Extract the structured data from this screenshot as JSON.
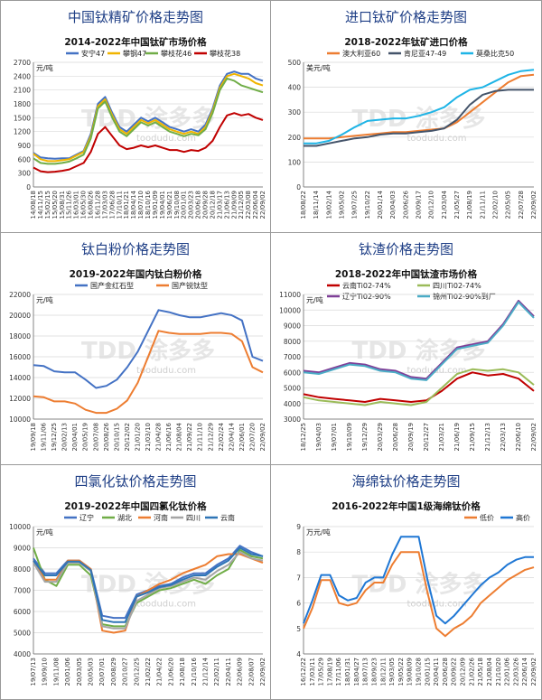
{
  "panels": [
    {
      "title": "中国钛精矿价格走势图",
      "chart_data": {
        "type": "line",
        "title": "2014-2022年中国钛矿市场价格",
        "ylabel": "元/吨",
        "ylim": [
          0,
          2700
        ],
        "yticks": [
          0,
          300,
          600,
          900,
          1200,
          1500,
          1800,
          2100,
          2400,
          2700
        ],
        "xticks": [
          "14/08/18",
          "14/11/15",
          "15/02/15",
          "15/05/20",
          "15/08/31",
          "15/11/26",
          "16/03/01",
          "16/05/30",
          "16/08/26",
          "16/11/28",
          "17/03/03",
          "17/06/28",
          "17/10/11",
          "18/01/21",
          "18/04/14",
          "18/07/10",
          "18/10/16",
          "19/01/09",
          "19/04/01",
          "19/06/21",
          "19/10/08",
          "20/01/01",
          "20/03/23",
          "20/06/18",
          "20/09/28",
          "20/12/18",
          "21/03/17",
          "21/06/13",
          "21/09/09",
          "21/12/05",
          "22/03/08",
          "22/06/04",
          "22/09/02"
        ],
        "grid": "horizontal",
        "legend": "top",
        "watermark": "toodudu.com",
        "series": [
          {
            "name": "安宁47",
            "color": "#4472c4",
            "values": [
              740,
              640,
              620,
              610,
              620,
              620,
              700,
              780,
              1150,
              1800,
              1950,
              1600,
              1300,
              1200,
              1350,
              1500,
              1420,
              1500,
              1400,
              1300,
              1250,
              1200,
              1250,
              1200,
              1350,
              1700,
              2200,
              2450,
              2500,
              2450,
              2450,
              2350,
              2300
            ]
          },
          {
            "name": "攀钢47",
            "color": "#f0b400",
            "values": [
              720,
              600,
              560,
              560,
              580,
              600,
              680,
              760,
              1100,
              1750,
              1900,
              1550,
              1250,
              1150,
              1300,
              1450,
              1380,
              1450,
              1350,
              1250,
              1200,
              1150,
              1200,
              1150,
              1300,
              1650,
              2150,
              2400,
              2450,
              2400,
              2350,
              2250,
              2200
            ]
          },
          {
            "name": "攀枝花46",
            "color": "#70ad47",
            "values": [
              620,
              520,
              500,
              500,
              520,
              550,
              620,
              700,
              1050,
              1700,
              1850,
              1500,
              1200,
              1100,
              1250,
              1400,
              1330,
              1400,
              1300,
              1200,
              1150,
              1100,
              1150,
              1120,
              1250,
              1600,
              2100,
              2350,
              2300,
              2200,
              2150,
              2100,
              2050
            ]
          },
          {
            "name": "攀枝花38",
            "color": "#c00000",
            "values": [
              420,
              340,
              320,
              330,
              350,
              380,
              450,
              520,
              760,
              1150,
              1300,
              1100,
              900,
              820,
              850,
              900,
              860,
              900,
              850,
              800,
              800,
              760,
              800,
              780,
              850,
              1000,
              1300,
              1550,
              1600,
              1550,
              1580,
              1500,
              1450
            ]
          }
        ]
      }
    },
    {
      "title": "进口钛矿价格走势图",
      "chart_data": {
        "type": "line",
        "title": "2018-2022年钛矿进口价格",
        "ylabel": "美元/吨",
        "ylim": [
          0,
          500
        ],
        "yticks": [
          0,
          100,
          200,
          300,
          400,
          500
        ],
        "xticks": [
          "18/08/22",
          "18/11/14",
          "19/02/14",
          "19/05/02",
          "19/07/25",
          "19/10/22",
          "20/01/14",
          "20/04/03",
          "20/06/26",
          "20/09/17",
          "20/12/10",
          "21/03/04",
          "21/05/27",
          "21/08/19",
          "21/11/11",
          "22/02/10",
          "22/05/05",
          "22/07/28",
          "22/09/02"
        ],
        "grid": "horizontal",
        "legend": "top",
        "watermark": "toodudu.com",
        "series": [
          {
            "name": "澳大利亚60",
            "color": "#ed7d31",
            "values": [
              195,
              195,
              195,
              200,
              205,
              210,
              215,
              220,
              220,
              225,
              230,
              235,
              260,
              300,
              340,
              380,
              420,
              445,
              450
            ]
          },
          {
            "name": "肯尼亚47-49",
            "color": "#44546a",
            "values": [
              165,
              165,
              175,
              185,
              195,
              200,
              210,
              215,
              215,
              220,
              225,
              235,
              270,
              330,
              370,
              385,
              390,
              390,
              390
            ]
          },
          {
            "name": "莫桑比克50",
            "color": "#1eb4e6",
            "values": [
              175,
              175,
              185,
              210,
              240,
              265,
              270,
              275,
              275,
              285,
              300,
              320,
              360,
              390,
              400,
              425,
              450,
              465,
              470
            ]
          }
        ]
      }
    },
    {
      "title": "钛白粉价格走势图",
      "chart_data": {
        "type": "line",
        "title": "2019-2022年国内钛白粉价格",
        "ylabel": "元/吨",
        "ylim": [
          10000,
          22000
        ],
        "yticks": [
          10000,
          12000,
          14000,
          16000,
          18000,
          20000,
          22000
        ],
        "xticks": [
          "19/09/18",
          "19/11/06",
          "19/12/25",
          "20/02/13",
          "20/04/01",
          "20/05/19",
          "20/07/08",
          "20/08/26",
          "20/10/15",
          "20/12/02",
          "21/01/20",
          "21/03/10",
          "21/04/28",
          "21/06/16",
          "21/08/04",
          "21/09/22",
          "21/11/10",
          "21/12/29",
          "22/02/24",
          "22/04/14",
          "22/06/01",
          "22/07/20",
          "22/09/02"
        ],
        "grid": "horizontal",
        "legend": "top",
        "watermark": "toodudu.com",
        "series": [
          {
            "name": "国产金红石型",
            "color": "#4472c4",
            "values": [
              15200,
              15100,
              14600,
              14500,
              14500,
              13800,
              13000,
              13200,
              13800,
              15000,
              16500,
              18500,
              20500,
              20300,
              20000,
              19800,
              19800,
              20000,
              20200,
              20000,
              19500,
              16000,
              15600
            ]
          },
          {
            "name": "国产锐钛型",
            "color": "#ed7d31",
            "values": [
              12200,
              12100,
              11700,
              11700,
              11500,
              10900,
              10600,
              10600,
              11000,
              11800,
              13500,
              16000,
              18500,
              18300,
              18200,
              18200,
              18200,
              18300,
              18300,
              18200,
              17500,
              15000,
              14500
            ]
          }
        ]
      }
    },
    {
      "title": "钛渣价格走势图",
      "chart_data": {
        "type": "line",
        "title": "2018-2022年中国钛渣市场价格",
        "ylabel": "元/吨",
        "ylim": [
          3000,
          11000
        ],
        "yticks": [
          3000,
          4000,
          5000,
          6000,
          7000,
          8000,
          9000,
          10000,
          11000
        ],
        "xticks": [
          "18/12/25",
          "19/04/03",
          "19/07/01",
          "19/10/09",
          "19/12/29",
          "20/03/29",
          "20/06/28",
          "20/09/19",
          "20/12/27",
          "21/03/21",
          "21/06/19",
          "21/09/15",
          "21/12/13",
          "22/03/13",
          "22/06/10",
          "22/09/02"
        ],
        "grid": "horizontal",
        "legend": "top",
        "watermark": "toodudu.com",
        "series": [
          {
            "name": "云南Ti02-74%",
            "color": "#c00000",
            "values": [
              4600,
              4400,
              4300,
              4200,
              4100,
              4300,
              4200,
              4100,
              4200,
              4800,
              5600,
              6000,
              5800,
              5900,
              5600,
              4800
            ]
          },
          {
            "name": "四川Ti02-74%",
            "color": "#9bbb59",
            "values": [
              4400,
              4200,
              4100,
              4000,
              3900,
              4100,
              4000,
              3900,
              4100,
              5000,
              5900,
              6200,
              6100,
              6200,
              6000,
              5200
            ]
          },
          {
            "name": "辽宁Ti02-90%",
            "color": "#7f3f98",
            "values": [
              6100,
              6000,
              6300,
              6600,
              6500,
              6200,
              6100,
              5700,
              5600,
              6600,
              7600,
              7800,
              8000,
              9100,
              10600,
              9600
            ]
          },
          {
            "name": "锦州Ti02-90%到厂",
            "color": "#4bacc6",
            "values": [
              6000,
              5900,
              6200,
              6500,
              6400,
              6100,
              6000,
              5600,
              5500,
              6500,
              7500,
              7700,
              7900,
              9000,
              10500,
              9500
            ]
          }
        ]
      }
    },
    {
      "title": "四氯化钛价格走势图",
      "chart_data": {
        "type": "line",
        "title": "2019-2022年中国四氯化钛价格",
        "ylabel": "元/吨",
        "ylim": [
          4000,
          10000
        ],
        "yticks": [
          4000,
          5000,
          6000,
          7000,
          8000,
          9000,
          10000
        ],
        "xticks": [
          "19/07/13",
          "19/09/10",
          "19/11/08",
          "20/01/06",
          "20/03/05",
          "20/05/03",
          "20/07/01",
          "20/08/29",
          "20/10/27",
          "20/12/25",
          "21/02/22",
          "21/04/22",
          "21/06/20",
          "21/08/18",
          "21/10/16",
          "21/12/14",
          "22/02/11",
          "22/04/11",
          "22/06/09",
          "22/08/07",
          "22/09/02"
        ],
        "grid": "horizontal",
        "legend": "top",
        "watermark": "toodudu.com",
        "series": [
          {
            "name": "辽宁",
            "color": "#4472c4",
            "values": [
              8500,
              7800,
              7800,
              8400,
              8400,
              8000,
              5800,
              5700,
              5700,
              6800,
              7000,
              7200,
              7300,
              7600,
              7800,
              7800,
              8200,
              8500,
              9100,
              8800,
              8600
            ]
          },
          {
            "name": "湖北",
            "color": "#70ad47",
            "values": [
              9000,
              7500,
              7200,
              8200,
              8200,
              7700,
              5400,
              5300,
              5300,
              6400,
              6700,
              7000,
              7100,
              7300,
              7500,
              7300,
              7700,
              8000,
              8900,
              8600,
              8500
            ]
          },
          {
            "name": "河南",
            "color": "#ed7d31",
            "values": [
              8400,
              7500,
              7500,
              8400,
              8400,
              8000,
              5100,
              5000,
              5100,
              6700,
              7000,
              7300,
              7500,
              7800,
              8000,
              8200,
              8600,
              8700,
              8700,
              8500,
              8300
            ]
          },
          {
            "name": "四川",
            "color": "#a5a5a5",
            "values": [
              8300,
              7400,
              7400,
              8300,
              8300,
              7900,
              5300,
              5200,
              5200,
              6500,
              6800,
              7100,
              7200,
              7400,
              7600,
              7500,
              7900,
              8200,
              8800,
              8500,
              8400
            ]
          },
          {
            "name": "云南",
            "color": "#2e75b6",
            "values": [
              8400,
              7700,
              7700,
              8350,
              8350,
              7950,
              5600,
              5500,
              5500,
              6700,
              6900,
              7150,
              7250,
              7500,
              7700,
              7700,
              8100,
              8400,
              9000,
              8700,
              8600
            ]
          }
        ]
      }
    },
    {
      "title": "海绵钛价格走势图",
      "chart_data": {
        "type": "line",
        "title": "2016-2022年中国1级海绵钛价格",
        "ylabel": "万元/吨",
        "ylim": [
          4,
          9
        ],
        "yticks": [
          4,
          5,
          6,
          7,
          8,
          9
        ],
        "xticks": [
          "16/12/22",
          "17/03/11",
          "17/05/29",
          "17/08/19",
          "17/11/06",
          "18/01/31",
          "18/04/27",
          "18/07/13",
          "18/09/23",
          "18/12/11",
          "19/03/05",
          "19/05/22",
          "19/08/09",
          "19/10/28",
          "20/01/15",
          "20/04/11",
          "20/06/28",
          "20/09/22",
          "20/12/09",
          "21/02/26",
          "21/05/18",
          "21/08/04",
          "21/10/20",
          "22/01/06",
          "22/03/26",
          "22/06/14",
          "22/09/02"
        ],
        "grid": "horizontal",
        "legend": "top-right",
        "watermark": "toodudu.com",
        "series": [
          {
            "name": "低价",
            "color": "#ed7d31",
            "values": [
              5.0,
              5.8,
              6.9,
              6.9,
              6.0,
              5.9,
              6.0,
              6.5,
              6.8,
              6.8,
              7.5,
              8.0,
              8.0,
              8.0,
              6.4,
              5.0,
              4.7,
              5.0,
              5.2,
              5.5,
              6.0,
              6.3,
              6.6,
              6.9,
              7.1,
              7.3,
              7.4
            ]
          },
          {
            "name": "高价",
            "color": "#1f77d4",
            "values": [
              5.2,
              6.1,
              7.1,
              7.1,
              6.3,
              6.1,
              6.2,
              6.8,
              7.0,
              7.0,
              7.9,
              8.6,
              8.6,
              8.6,
              6.9,
              5.5,
              5.2,
              5.5,
              5.9,
              6.3,
              6.7,
              7.0,
              7.2,
              7.5,
              7.7,
              7.8,
              7.8
            ]
          }
        ]
      }
    }
  ]
}
